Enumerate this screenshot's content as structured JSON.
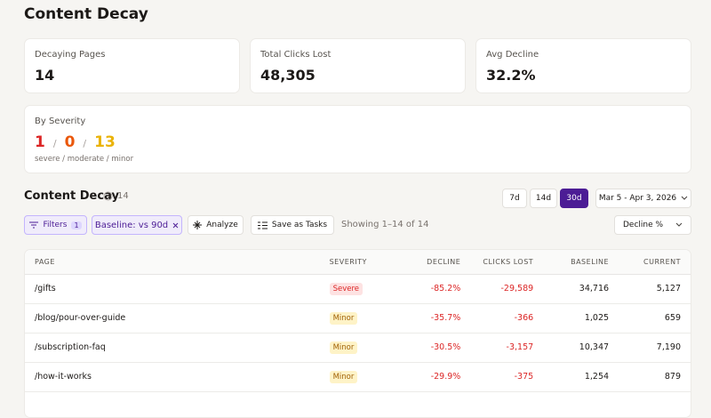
{
  "header": {
    "title": "Content Decay"
  },
  "stats": [
    {
      "label": "Decaying Pages",
      "value": "14"
    },
    {
      "label": "Total Clicks Lost",
      "value": "48,305"
    },
    {
      "label": "Avg Decline",
      "value": "32.2%"
    }
  ],
  "severity": {
    "label": "By Severity",
    "severe": 1,
    "moderate": 0,
    "minor": 13,
    "sep": "/",
    "caption": "severe / moderate / minor"
  },
  "section": {
    "title": "Content Decay",
    "count": 14,
    "ranges": [
      "7d",
      "14d",
      "30d"
    ],
    "active_range": 2,
    "date_range": "Mar 5 - Apr 3, 2026"
  },
  "toolbar": {
    "filters": "Filters",
    "filter_count": 1,
    "baseline": "Baseline: vs 90d",
    "analyze": "Analyze",
    "save": "Save as Tasks",
    "showing": "Showing 1–14 of 14",
    "sort": "Decline %"
  },
  "table": {
    "columns": [
      "PAGE",
      "SEVERITY",
      "DECLINE",
      "CLICKS LOST",
      "BASELINE",
      "CURRENT"
    ],
    "rows": [
      [
        "/gifts",
        "Severe",
        "-85.2%",
        "-29,589",
        "34,716",
        "5,127"
      ],
      [
        "/blog/pour-over-guide",
        "Minor",
        "-35.7%",
        "-366",
        "1,025",
        "659"
      ],
      [
        "/subscription-faq",
        "Minor",
        "-30.5%",
        "-3,157",
        "10,347",
        "7,190"
      ],
      [
        "/how-it-works",
        "Minor",
        "-29.9%",
        "-375",
        "1,254",
        "879"
      ]
    ]
  }
}
